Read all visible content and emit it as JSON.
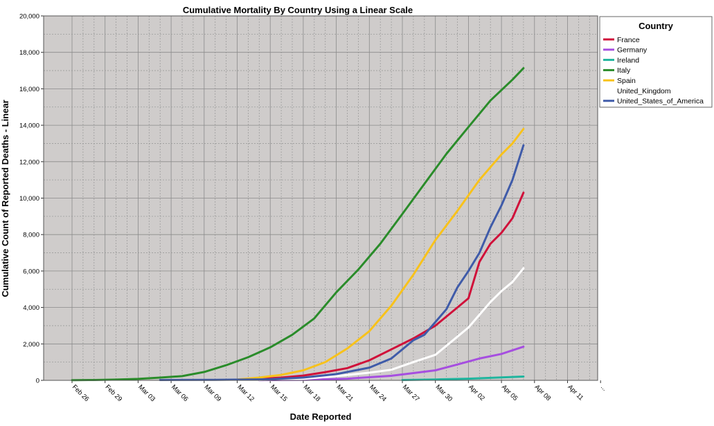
{
  "chart_data": {
    "type": "line",
    "title": "Cumulative Mortality By Country Using a Linear Scale",
    "xlabel": "Date Reported",
    "ylabel": "Cumulative Count of Reported Deaths - Linear",
    "ylim": [
      0,
      20000
    ],
    "yticks": [
      0,
      2000,
      4000,
      6000,
      8000,
      10000,
      12000,
      14000,
      16000,
      18000,
      20000
    ],
    "ytick_labels": [
      "0",
      "2,000",
      "4,000",
      "6,000",
      "8,000",
      "10,000",
      "12,000",
      "14,000",
      "16,000",
      "18,000",
      "20,000"
    ],
    "x_ticks": [
      "Feb 26",
      "Feb 29",
      "Mar 03",
      "Mar 06",
      "Mar 09",
      "Mar 12",
      "Mar 15",
      "Mar 18",
      "Mar 21",
      "Mar 24",
      "Mar 27",
      "Mar 30",
      "Apr 02",
      "Apr 05",
      "Apr 08",
      "Apr 11",
      "..."
    ],
    "grid": true,
    "legend": {
      "title": "Country",
      "position": "right"
    },
    "series": [
      {
        "name": "France",
        "color": "#d0113a",
        "points": [
          [
            "Mar 14",
            80
          ],
          [
            "Mar 16",
            150
          ],
          [
            "Mar 18",
            260
          ],
          [
            "Mar 20",
            450
          ],
          [
            "Mar 22",
            670
          ],
          [
            "Mar 24",
            1100
          ],
          [
            "Mar 26",
            1700
          ],
          [
            "Mar 28",
            2300
          ],
          [
            "Mar 30",
            3000
          ],
          [
            "Apr 01",
            4000
          ],
          [
            "Apr 02",
            4500
          ],
          [
            "Apr 03",
            6500
          ],
          [
            "Apr 04",
            7500
          ],
          [
            "Apr 05",
            8100
          ],
          [
            "Apr 06",
            8900
          ],
          [
            "Apr 07",
            10300
          ]
        ]
      },
      {
        "name": "Germany",
        "color": "#a64ee0",
        "points": [
          [
            "Mar 14",
            10
          ],
          [
            "Mar 18",
            30
          ],
          [
            "Mar 22",
            90
          ],
          [
            "Mar 26",
            250
          ],
          [
            "Mar 28",
            400
          ],
          [
            "Mar 30",
            550
          ],
          [
            "Apr 01",
            870
          ],
          [
            "Apr 03",
            1200
          ],
          [
            "Apr 05",
            1450
          ],
          [
            "Apr 07",
            1850
          ]
        ]
      },
      {
        "name": "Ireland",
        "color": "#1fb59e",
        "points": [
          [
            "Mar 27",
            20
          ],
          [
            "Mar 30",
            50
          ],
          [
            "Apr 02",
            90
          ],
          [
            "Apr 05",
            160
          ],
          [
            "Apr 07",
            210
          ]
        ]
      },
      {
        "name": "Italy",
        "color": "#2a8c2a",
        "points": [
          [
            "Feb 26",
            10
          ],
          [
            "Feb 28",
            20
          ],
          [
            "Mar 01",
            40
          ],
          [
            "Mar 03",
            80
          ],
          [
            "Mar 05",
            150
          ],
          [
            "Mar 07",
            230
          ],
          [
            "Mar 09",
            460
          ],
          [
            "Mar 11",
            830
          ],
          [
            "Mar 13",
            1270
          ],
          [
            "Mar 15",
            1810
          ],
          [
            "Mar 17",
            2500
          ],
          [
            "Mar 19",
            3400
          ],
          [
            "Mar 21",
            4830
          ],
          [
            "Mar 23",
            6080
          ],
          [
            "Mar 25",
            7500
          ],
          [
            "Mar 27",
            9130
          ],
          [
            "Mar 29",
            10780
          ],
          [
            "Mar 31",
            12430
          ],
          [
            "Apr 02",
            13900
          ],
          [
            "Apr 04",
            15360
          ],
          [
            "Apr 06",
            16500
          ],
          [
            "Apr 07",
            17130
          ]
        ]
      },
      {
        "name": "Spain",
        "color": "#f8c21b",
        "points": [
          [
            "Mar 12",
            50
          ],
          [
            "Mar 14",
            150
          ],
          [
            "Mar 16",
            300
          ],
          [
            "Mar 18",
            550
          ],
          [
            "Mar 20",
            1000
          ],
          [
            "Mar 22",
            1750
          ],
          [
            "Mar 24",
            2700
          ],
          [
            "Mar 26",
            4100
          ],
          [
            "Mar 28",
            5800
          ],
          [
            "Mar 30",
            7700
          ],
          [
            "Apr 01",
            9300
          ],
          [
            "Apr 03",
            11000
          ],
          [
            "Apr 05",
            12400
          ],
          [
            "Apr 06",
            13000
          ],
          [
            "Apr 07",
            13800
          ]
        ]
      },
      {
        "name": "United_Kingdom",
        "color": "#ffffff",
        "points": [
          [
            "Mar 14",
            20
          ],
          [
            "Mar 18",
            80
          ],
          [
            "Mar 21",
            230
          ],
          [
            "Mar 24",
            420
          ],
          [
            "Mar 26",
            580
          ],
          [
            "Mar 28",
            1000
          ],
          [
            "Mar 30",
            1400
          ],
          [
            "Apr 01",
            2400
          ],
          [
            "Apr 02",
            2900
          ],
          [
            "Apr 03",
            3600
          ],
          [
            "Apr 04",
            4300
          ],
          [
            "Apr 05",
            4900
          ],
          [
            "Apr 06",
            5400
          ],
          [
            "Apr 07",
            6150
          ]
        ]
      },
      {
        "name": "United_States_of_America",
        "color": "#3f5ba9",
        "points": [
          [
            "Mar 05",
            20
          ],
          [
            "Mar 10",
            30
          ],
          [
            "Mar 15",
            60
          ],
          [
            "Mar 18",
            150
          ],
          [
            "Mar 21",
            340
          ],
          [
            "Mar 24",
            700
          ],
          [
            "Mar 26",
            1200
          ],
          [
            "Mar 28",
            2200
          ],
          [
            "Mar 29",
            2500
          ],
          [
            "Mar 31",
            3900
          ],
          [
            "Apr 01",
            5100
          ],
          [
            "Apr 02",
            6000
          ],
          [
            "Apr 03",
            7000
          ],
          [
            "Apr 04",
            8400
          ],
          [
            "Apr 05",
            9600
          ],
          [
            "Apr 06",
            11000
          ],
          [
            "Apr 07",
            12900
          ]
        ]
      }
    ]
  },
  "colors": {
    "plot_background": "#cfcccb",
    "grid_major": "#8a8a8a",
    "grid_minor": "#9b9b9b"
  }
}
